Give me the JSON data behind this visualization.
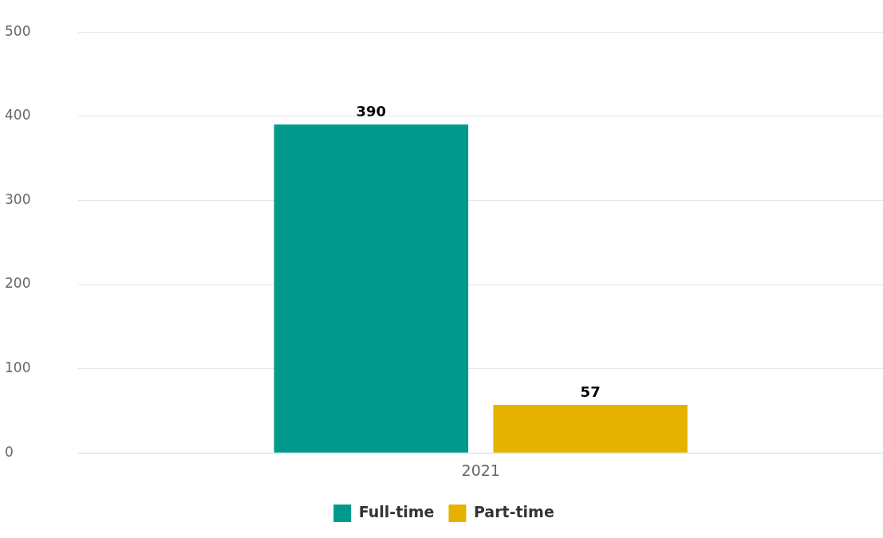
{
  "chart_data": {
    "type": "bar",
    "categories": [
      "2021"
    ],
    "series": [
      {
        "name": "Full-time",
        "color": "#009a8c",
        "values": [
          390
        ]
      },
      {
        "name": "Part-time",
        "color": "#e6b200",
        "values": [
          57
        ]
      }
    ],
    "ylim": [
      0,
      500
    ],
    "yticks": [
      0,
      100,
      200,
      300,
      400,
      500
    ],
    "grid": "y",
    "legend": "bottom",
    "data_labels": true
  }
}
